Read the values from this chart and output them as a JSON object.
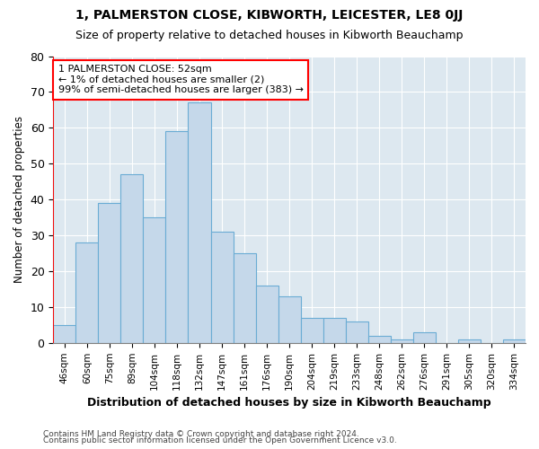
{
  "title1": "1, PALMERSTON CLOSE, KIBWORTH, LEICESTER, LE8 0JJ",
  "title2": "Size of property relative to detached houses in Kibworth Beauchamp",
  "xlabel": "Distribution of detached houses by size in Kibworth Beauchamp",
  "ylabel": "Number of detached properties",
  "footer1": "Contains HM Land Registry data © Crown copyright and database right 2024.",
  "footer2": "Contains public sector information licensed under the Open Government Licence v3.0.",
  "bar_labels": [
    "46sqm",
    "60sqm",
    "75sqm",
    "89sqm",
    "104sqm",
    "118sqm",
    "132sqm",
    "147sqm",
    "161sqm",
    "176sqm",
    "190sqm",
    "204sqm",
    "219sqm",
    "233sqm",
    "248sqm",
    "262sqm",
    "276sqm",
    "291sqm",
    "305sqm",
    "320sqm",
    "334sqm"
  ],
  "bar_values": [
    5,
    28,
    39,
    47,
    35,
    59,
    67,
    31,
    25,
    16,
    13,
    7,
    7,
    6,
    2,
    1,
    3,
    0,
    1,
    0,
    1
  ],
  "bar_color": "#c5d8ea",
  "bar_edge_color": "#6aacd4",
  "bg_color": "#dde8f0",
  "annotation_line_color": "red",
  "annotation_box_edge_color": "red",
  "annotation_box_text_line1": "1 PALMERSTON CLOSE: 52sqm",
  "annotation_box_text_line2": "← 1% of detached houses are smaller (2)",
  "annotation_box_text_line3": "99% of semi-detached houses are larger (383) →",
  "ylim": [
    0,
    80
  ],
  "yticks": [
    0,
    10,
    20,
    30,
    40,
    50,
    60,
    70,
    80
  ]
}
